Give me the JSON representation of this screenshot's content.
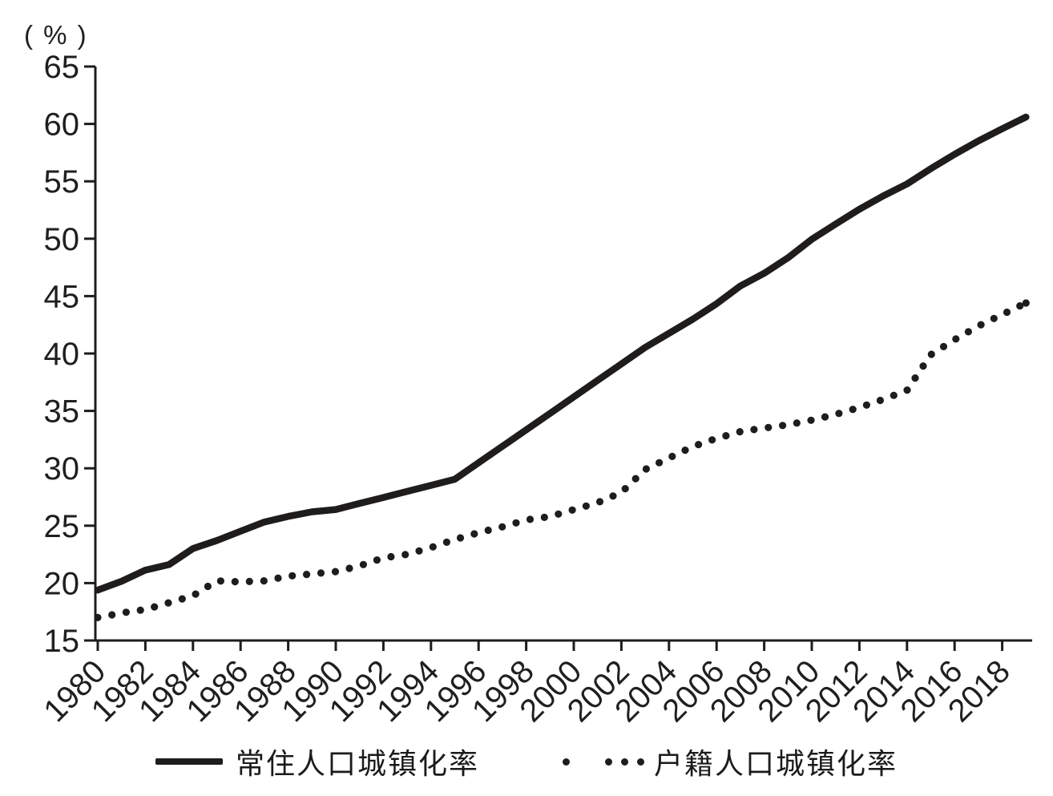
{
  "figure": {
    "unit_label": "( % )"
  },
  "chart_data": {
    "type": "line",
    "title": "",
    "xlabel": "",
    "ylabel": "( % )",
    "ylim": [
      15,
      65
    ],
    "xlim": [
      1980,
      2019
    ],
    "grid": false,
    "legend_position": "bottom",
    "line_color": "#1f1c1c",
    "yticks": [
      65,
      60,
      55,
      50,
      45,
      40,
      35,
      30,
      25,
      20,
      15
    ],
    "xticks": [
      1980,
      1982,
      1984,
      1986,
      1988,
      1990,
      1992,
      1994,
      1996,
      1998,
      2000,
      2002,
      2004,
      2006,
      2008,
      2010,
      2012,
      2014,
      2016,
      2018
    ],
    "x": [
      1980,
      1981,
      1982,
      1983,
      1984,
      1985,
      1986,
      1987,
      1988,
      1989,
      1990,
      1991,
      1992,
      1993,
      1994,
      1995,
      1996,
      1997,
      1998,
      1999,
      2000,
      2001,
      2002,
      2003,
      2004,
      2005,
      2006,
      2007,
      2008,
      2009,
      2010,
      2011,
      2012,
      2013,
      2014,
      2015,
      2016,
      2017,
      2018,
      2019
    ],
    "series": [
      {
        "name": "常住人口城镇化率",
        "style": "solid",
        "values": [
          19.39,
          20.16,
          21.13,
          21.62,
          23.01,
          23.71,
          24.52,
          25.32,
          25.81,
          26.21,
          26.41,
          26.94,
          27.46,
          27.99,
          28.51,
          29.04,
          30.48,
          31.91,
          33.35,
          34.78,
          36.22,
          37.66,
          39.09,
          40.53,
          41.76,
          42.99,
          44.34,
          45.89,
          46.99,
          48.34,
          49.95,
          51.27,
          52.57,
          53.73,
          54.77,
          56.1,
          57.35,
          58.52,
          59.58,
          60.6
        ]
      },
      {
        "name": "户籍人口城镇化率",
        "style": "dotted",
        "values": [
          17.0,
          17.4,
          17.7,
          18.3,
          18.9,
          20.2,
          20.1,
          20.2,
          20.6,
          20.8,
          21.0,
          21.5,
          22.2,
          22.5,
          23.1,
          23.8,
          24.4,
          24.9,
          25.5,
          25.8,
          26.4,
          27.0,
          27.9,
          29.9,
          30.9,
          31.9,
          32.6,
          33.2,
          33.5,
          33.8,
          34.2,
          34.7,
          35.3,
          36.0,
          36.8,
          39.9,
          41.2,
          42.4,
          43.4,
          44.4
        ]
      }
    ]
  }
}
